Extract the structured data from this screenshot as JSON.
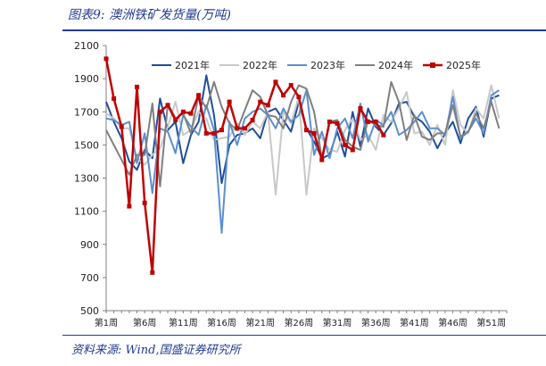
{
  "header": {
    "title": "图表9:  澳洲铁矿发货量(万吨)"
  },
  "footer": {
    "source": "资料来源: Wind,国盛证券研究所"
  },
  "colors": {
    "accent": "#1f3a93"
  },
  "chart_data": {
    "type": "line",
    "title": "图表9:  澳洲铁矿发货量(万吨)",
    "xlabel": "",
    "ylabel": "",
    "ylim": [
      500,
      2100
    ],
    "yticks": [
      500,
      700,
      900,
      1100,
      1300,
      1500,
      1700,
      1900,
      2100
    ],
    "xlim": [
      1,
      53
    ],
    "xticks": [
      {
        "week": 1,
        "label": "第1周"
      },
      {
        "week": 6,
        "label": "第6周"
      },
      {
        "week": 11,
        "label": "第11周"
      },
      {
        "week": 16,
        "label": "第16周"
      },
      {
        "week": 21,
        "label": "第21周"
      },
      {
        "week": 26,
        "label": "第26周"
      },
      {
        "week": 31,
        "label": "第31周"
      },
      {
        "week": 36,
        "label": "第36周"
      },
      {
        "week": 41,
        "label": "第41周"
      },
      {
        "week": 46,
        "label": "第46周"
      },
      {
        "week": 51,
        "label": "第51周"
      }
    ],
    "grid": false,
    "legend": "top",
    "series": [
      {
        "name": "2021年",
        "color": "#1f4e9c",
        "width": 2,
        "marker": false,
        "values": [
          1760,
          1640,
          1540,
          1400,
          1350,
          1470,
          1420,
          1780,
          1590,
          1640,
          1390,
          1560,
          1640,
          1920,
          1680,
          1270,
          1500,
          1560,
          1570,
          1600,
          1540,
          1700,
          1720,
          1650,
          1580,
          1760,
          1600,
          1520,
          1420,
          1440,
          1580,
          1430,
          1700,
          1490,
          1720,
          1610,
          1560,
          1630,
          1750,
          1760,
          1670,
          1640,
          1580,
          1480,
          1570,
          1640,
          1510,
          1660,
          1730,
          1550,
          1780,
          1800
        ]
      },
      {
        "name": "2022年",
        "color": "#c8c8c8",
        "width": 2,
        "marker": false,
        "values": [
          1690,
          1660,
          1600,
          1600,
          1420,
          1380,
          1440,
          1480,
          1610,
          1760,
          1560,
          1590,
          1700,
          1660,
          1530,
          1540,
          1550,
          1630,
          1560,
          1640,
          1600,
          1700,
          1200,
          1700,
          1630,
          1790,
          1200,
          1600,
          1540,
          1470,
          1460,
          1590,
          1660,
          1530,
          1560,
          1470,
          1680,
          1640,
          1720,
          1820,
          1570,
          1580,
          1500,
          1620,
          1500,
          1830,
          1620,
          1570,
          1720,
          1660,
          1860,
          1660
        ]
      },
      {
        "name": "2023年",
        "color": "#5b8fd0",
        "width": 2,
        "marker": false,
        "values": [
          1660,
          1650,
          1620,
          1640,
          1390,
          1570,
          1210,
          1600,
          1580,
          1450,
          1680,
          1610,
          1560,
          1740,
          1590,
          970,
          1640,
          1500,
          1660,
          1700,
          1720,
          1680,
          1600,
          1720,
          1640,
          1680,
          1830,
          1440,
          1580,
          1420,
          1600,
          1660,
          1540,
          1750,
          1520,
          1650,
          1620,
          1700,
          1560,
          1590,
          1640,
          1700,
          1600,
          1600,
          1560,
          1790,
          1540,
          1580,
          1660,
          1570,
          1800,
          1830
        ]
      },
      {
        "name": "2024年",
        "color": "#7f7f7f",
        "width": 2,
        "marker": false,
        "values": [
          1590,
          1500,
          1410,
          1320,
          1440,
          1440,
          1750,
          1250,
          1750,
          1660,
          1690,
          1570,
          1800,
          1720,
          1880,
          1730,
          1630,
          1590,
          1710,
          1830,
          1790,
          1680,
          1670,
          1600,
          1760,
          1860,
          1840,
          1700,
          1420,
          1640,
          1650,
          1530,
          1490,
          1470,
          1650,
          1620,
          1610,
          1880,
          1760,
          1530,
          1680,
          1550,
          1530,
          1570,
          1570,
          1740,
          1550,
          1580,
          1690,
          1600,
          1760,
          1600
        ]
      },
      {
        "name": "2025年",
        "color": "#c00000",
        "width": 2.5,
        "marker": true,
        "values": [
          2020,
          1780,
          1610,
          1130,
          1850,
          1150,
          730,
          1700,
          1740,
          1650,
          1700,
          1690,
          1800,
          1570,
          1570,
          1590,
          1760,
          1600,
          1600,
          1650,
          1760,
          1740,
          1880,
          1800,
          1860,
          1790,
          1590,
          1570,
          1410,
          1640,
          1630,
          1500,
          1470,
          1720,
          1640,
          1640,
          1560
        ]
      }
    ]
  }
}
